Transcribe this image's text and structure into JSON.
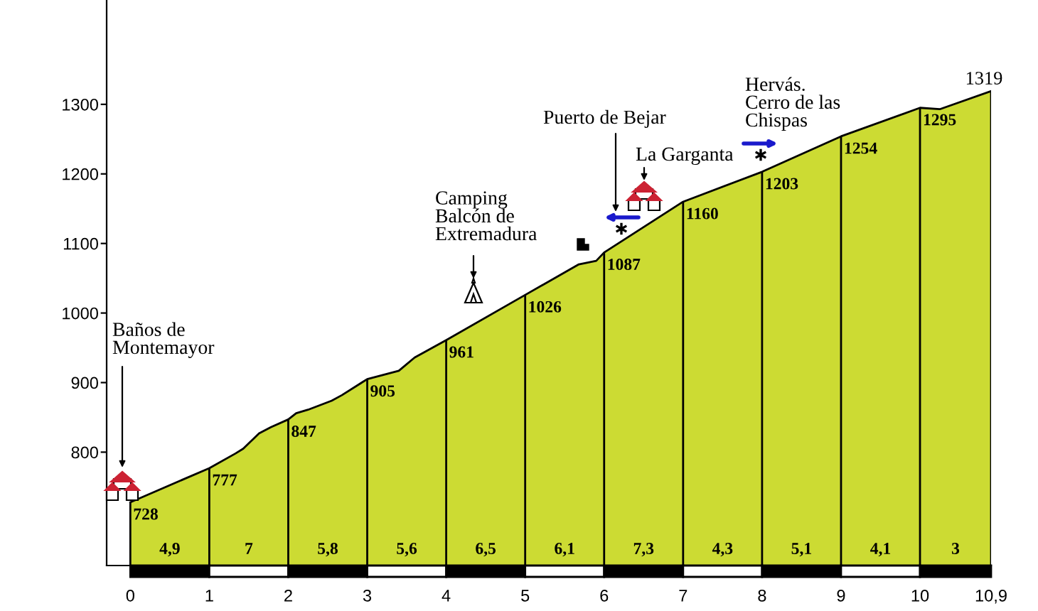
{
  "chart_data": {
    "type": "area",
    "x": [
      0,
      1,
      1.33,
      1.43,
      1.63,
      1.78,
      2,
      2.1,
      2.25,
      2.55,
      2.68,
      3,
      3.4,
      3.6,
      4,
      5,
      5.68,
      5.9,
      6,
      7,
      8,
      9,
      10,
      10.25,
      10.9
    ],
    "values": [
      728,
      777,
      798,
      805,
      827,
      836,
      847,
      856,
      861,
      874,
      882,
      905,
      917,
      936,
      961,
      1026,
      1070,
      1075,
      1087,
      1160,
      1203,
      1254,
      1295,
      1293,
      1319
    ],
    "value_labels": [
      "728",
      "777",
      null,
      null,
      null,
      null,
      "847",
      null,
      null,
      null,
      null,
      "905",
      null,
      null,
      "961",
      "1026",
      null,
      null,
      "1087",
      "1160",
      "1203",
      "1254",
      "1295",
      null,
      "1319"
    ],
    "color": "#ccdb33",
    "xlim": [
      -0.3,
      10.9
    ],
    "ylim": [
      637,
      1450
    ],
    "xticks": [
      0,
      1,
      2,
      3,
      4,
      5,
      6,
      7,
      8,
      9,
      10,
      {
        "value": 10.9,
        "label": "10,9"
      }
    ],
    "yticks": [
      800,
      900,
      1000,
      1100,
      1200,
      1300
    ],
    "annotations": [
      "Baños de\nMontemayor",
      "Camping\nBalcón de\nExtremadura",
      "Puerto de Bejar",
      "La Garganta",
      "Hervás.\nCerro de las\nChispas",
      "4,9",
      "7",
      "5,8",
      "5,6",
      "6,5",
      "6,1",
      "7,3",
      "4,3",
      "5,1",
      "4,1",
      "3"
    ]
  }
}
